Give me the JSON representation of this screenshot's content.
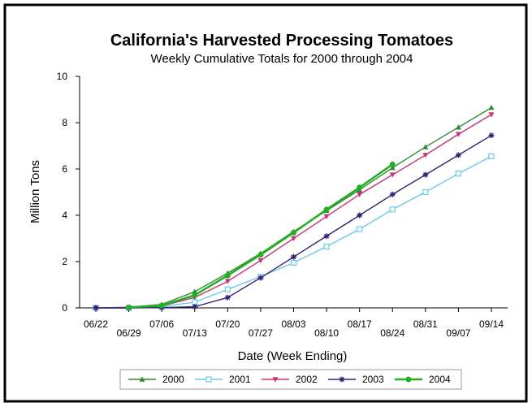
{
  "chart_data": {
    "type": "line",
    "title": "California's Harvested Processing Tomatoes",
    "subtitle": "Weekly Cumulative Totals for 2000 through 2004",
    "xlabel": "Date (Week Ending)",
    "ylabel": "Million Tons",
    "ylim": [
      0,
      10
    ],
    "yticks": [
      "0",
      "2",
      "4",
      "6",
      "8",
      "10"
    ],
    "categories": [
      "06/22",
      "06/29",
      "07/06",
      "07/13",
      "07/20",
      "07/27",
      "08/03",
      "08/10",
      "08/17",
      "08/24",
      "08/31",
      "09/07",
      "09/14"
    ],
    "grid": false,
    "legend_position": "bottom",
    "series": [
      {
        "name": "2000",
        "color": "#2e8b2e",
        "marker": "triangle-up",
        "values": [
          0,
          0.03,
          0.15,
          0.7,
          1.5,
          2.35,
          3.3,
          4.2,
          5.1,
          6.05,
          6.95,
          7.8,
          8.65
        ]
      },
      {
        "name": "2001",
        "color": "#66ccee",
        "marker": "square-open",
        "values": [
          0,
          0,
          0.05,
          0.25,
          0.8,
          1.35,
          1.95,
          2.65,
          3.4,
          4.25,
          5.0,
          5.8,
          6.55
        ]
      },
      {
        "name": "2002",
        "color": "#cc3377",
        "marker": "triangle-down",
        "values": [
          0,
          0,
          0.08,
          0.45,
          1.15,
          2.05,
          3.0,
          3.95,
          4.9,
          5.75,
          6.6,
          7.5,
          8.35
        ]
      },
      {
        "name": "2003",
        "color": "#33207a",
        "marker": "star",
        "values": [
          0,
          0,
          0.01,
          0.05,
          0.45,
          1.3,
          2.2,
          3.1,
          4.0,
          4.9,
          5.75,
          6.6,
          7.45
        ]
      },
      {
        "name": "2004",
        "color": "#22b022",
        "marker": "circle",
        "values": [
          null,
          0.02,
          0.1,
          0.55,
          1.4,
          2.3,
          3.25,
          4.25,
          5.2,
          6.2,
          null,
          null,
          null
        ]
      }
    ]
  }
}
